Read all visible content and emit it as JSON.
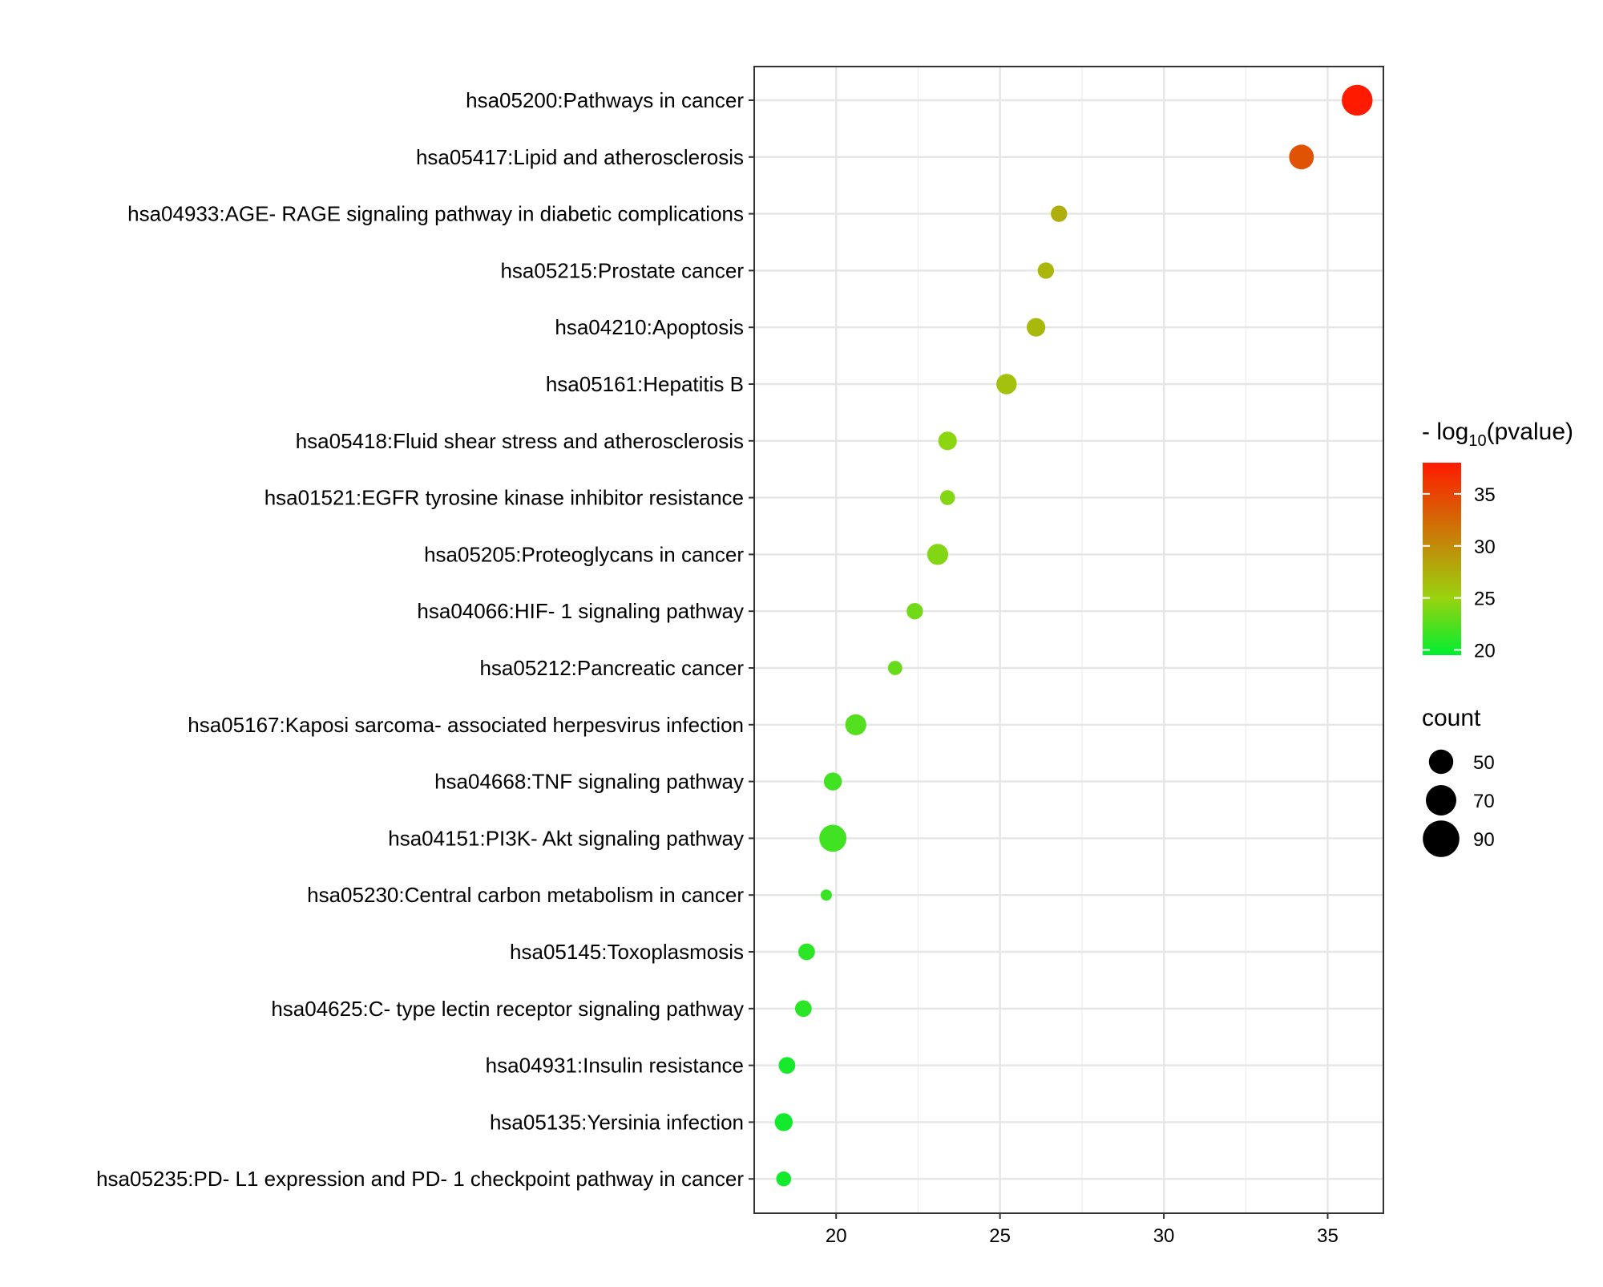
{
  "chart_data": {
    "type": "scatter",
    "title": "",
    "xlabel": "",
    "ylabel": "",
    "xlim": [
      17.5,
      36.7
    ],
    "xticks": [
      20,
      25,
      30,
      35
    ],
    "grid": true,
    "points": [
      {
        "term": "hsa05200:Pathways in cancer",
        "x": 35.9,
        "pvalue": 38,
        "count": 92
      },
      {
        "term": "hsa05417:Lipid and atherosclerosis",
        "x": 34.2,
        "pvalue": 34,
        "count": 72
      },
      {
        "term": "hsa04933:AGE- RAGE signaling pathway in diabetic complications",
        "x": 26.8,
        "pvalue": 27.5,
        "count": 45
      },
      {
        "term": "hsa05215:Prostate cancer",
        "x": 26.4,
        "pvalue": 27,
        "count": 45
      },
      {
        "term": "hsa04210:Apoptosis",
        "x": 26.1,
        "pvalue": 26.8,
        "count": 52
      },
      {
        "term": "hsa05161:Hepatitis B",
        "x": 25.2,
        "pvalue": 26.2,
        "count": 58
      },
      {
        "term": "hsa05418:Fluid shear stress and atherosclerosis",
        "x": 23.4,
        "pvalue": 24.5,
        "count": 52
      },
      {
        "term": "hsa01521:EGFR tyrosine kinase inhibitor resistance",
        "x": 23.4,
        "pvalue": 24.2,
        "count": 40
      },
      {
        "term": "hsa05205:Proteoglycans in cancer",
        "x": 23.1,
        "pvalue": 24.2,
        "count": 60
      },
      {
        "term": "hsa04066:HIF- 1 signaling pathway",
        "x": 22.4,
        "pvalue": 23.5,
        "count": 45
      },
      {
        "term": "hsa05212:Pancreatic cancer",
        "x": 21.8,
        "pvalue": 23.2,
        "count": 38
      },
      {
        "term": "hsa05167:Kaposi sarcoma- associated herpesvirus infection",
        "x": 20.6,
        "pvalue": 22.5,
        "count": 60
      },
      {
        "term": "hsa04668:TNF signaling pathway",
        "x": 19.9,
        "pvalue": 21.8,
        "count": 50
      },
      {
        "term": "hsa04151:PI3K- Akt signaling pathway",
        "x": 19.9,
        "pvalue": 21.8,
        "count": 80
      },
      {
        "term": "hsa05230:Central carbon metabolism in cancer",
        "x": 19.7,
        "pvalue": 21.5,
        "count": 28
      },
      {
        "term": "hsa05145:Toxoplasmosis",
        "x": 19.1,
        "pvalue": 21,
        "count": 46
      },
      {
        "term": "hsa04625:C- type lectin receptor signaling pathway",
        "x": 19.0,
        "pvalue": 21,
        "count": 46
      },
      {
        "term": "hsa04931:Insulin resistance",
        "x": 18.5,
        "pvalue": 20.3,
        "count": 46
      },
      {
        "term": "hsa05135:Yersinia infection",
        "x": 18.4,
        "pvalue": 20.2,
        "count": 50
      },
      {
        "term": "hsa05235:PD- L1 expression and PD- 1 checkpoint pathway in cancer",
        "x": 18.4,
        "pvalue": 20.2,
        "count": 40
      }
    ],
    "color_legend": {
      "title_prefix": "- log",
      "title_sub": "10",
      "title_suffix": "(pvalue)",
      "range": [
        19.5,
        38
      ],
      "ticks": [
        20,
        25,
        30,
        35
      ],
      "low_color": "#00ee30",
      "mid_color": "#9bd20e",
      "high_color": "#ff1a00"
    },
    "size_legend": {
      "title": "count",
      "values": [
        50,
        70,
        90
      ]
    }
  }
}
